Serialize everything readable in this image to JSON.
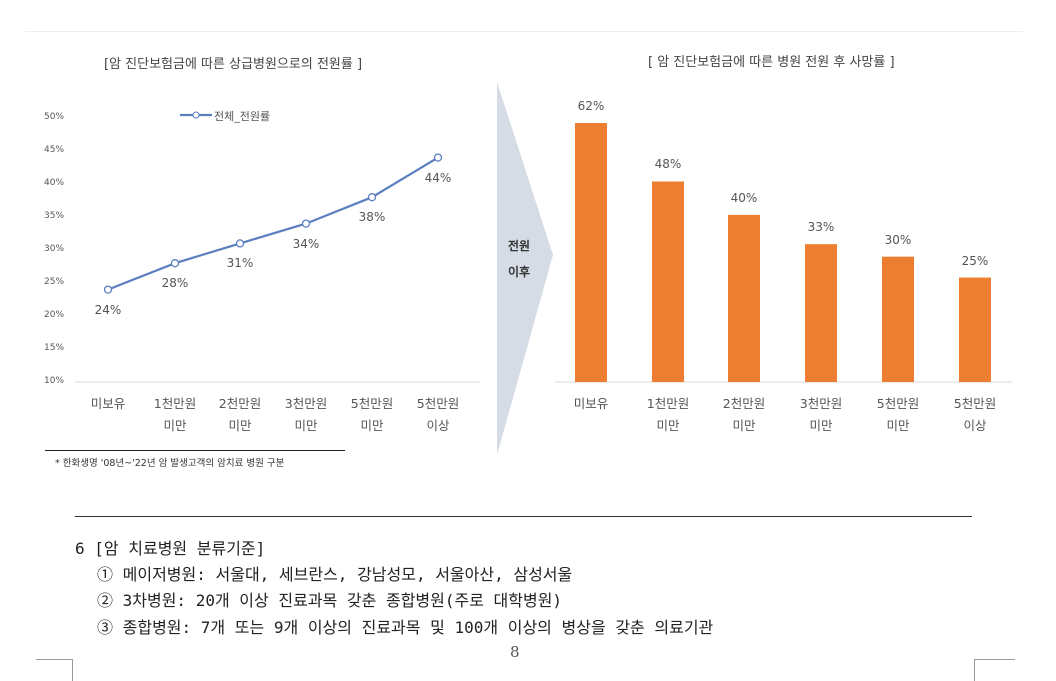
{
  "left_chart_title": "[암 진단보험금에 따른 상급병원으로의 전원률 ]",
  "right_chart_title": "[ 암 진단보험금에 따른 병원 전원 후 사망률 ]",
  "arrow_text": [
    "전원",
    "이후"
  ],
  "footnote": "* 한화생명 '08년~'22년 암 발생고객의 암치료 병원 구분",
  "chart_data": [
    {
      "type": "line",
      "categories": [
        [
          "미보유"
        ],
        [
          "1천만원",
          "미만"
        ],
        [
          "2천만원",
          "미만"
        ],
        [
          "3천만원",
          "미만"
        ],
        [
          "5천만원",
          "미만"
        ],
        [
          "5천만원",
          "이상"
        ]
      ],
      "series": [
        {
          "name": "전체_전원률",
          "values": [
            24,
            28,
            31,
            34,
            38,
            44
          ],
          "labels": [
            "24%",
            "28%",
            "31%",
            "34%",
            "38%",
            "44%"
          ],
          "color": "#5b7fbf"
        }
      ],
      "yticks": [
        "50%",
        "45%",
        "40%",
        "35%",
        "30%",
        "25%",
        "20%",
        "15%",
        "10%"
      ],
      "ylim": [
        10,
        50
      ],
      "legend": "top"
    },
    {
      "type": "bar",
      "categories": [
        [
          "미보유"
        ],
        [
          "1천만원",
          "미만"
        ],
        [
          "2천만원",
          "미만"
        ],
        [
          "3천만원",
          "미만"
        ],
        [
          "5천만원",
          "미만"
        ],
        [
          "5천만원",
          "이상"
        ]
      ],
      "values": [
        62,
        48,
        40,
        33,
        30,
        25
      ],
      "labels": [
        "62%",
        "48%",
        "40%",
        "33%",
        "30%",
        "25%"
      ],
      "color": "#ed7d31",
      "ylim": [
        0,
        62
      ]
    }
  ],
  "section": {
    "heading": "6 [암 치료병원 분류기준]",
    "items": [
      "① 메이저병원: 서울대, 세브란스, 강남성모, 서울아산, 삼성서울",
      "② 3차병원: 20개 이상 진료과목 갖춘 종합병원(주로 대학병원)",
      "③ 종합병원: 7개 또는 9개 이상의 진료과목 및 100개 이상의 병상을 갖춘 의료기관"
    ]
  },
  "page_number": "8"
}
